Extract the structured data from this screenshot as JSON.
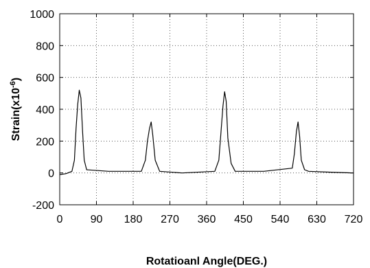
{
  "chart_data": {
    "type": "line",
    "title": "",
    "xlabel": "Rotatioanl Angle(DEG.)",
    "ylabel": {
      "base": "Strain(x10",
      "exponent": "-6",
      "close": ")"
    },
    "xlim": [
      0,
      720
    ],
    "ylim": [
      -200,
      1000
    ],
    "xticks": [
      "0",
      "90",
      "180",
      "270",
      "360",
      "450",
      "540",
      "630",
      "720"
    ],
    "yticks": [
      "-200",
      "0",
      "200",
      "400",
      "600",
      "800",
      "1000"
    ],
    "grid": true,
    "legend": "none",
    "series": [
      {
        "color": "#000000",
        "x": [
          0,
          15,
          30,
          36,
          40,
          44,
          48,
          52,
          56,
          60,
          66,
          120,
          200,
          210,
          215,
          220,
          224,
          228,
          234,
          245,
          300,
          380,
          390,
          395,
          400,
          404,
          408,
          412,
          420,
          430,
          500,
          570,
          575,
          580,
          584,
          588,
          592,
          600,
          610,
          660,
          720
        ],
        "y": [
          -10,
          -5,
          10,
          80,
          280,
          430,
          520,
          470,
          260,
          80,
          20,
          10,
          10,
          80,
          200,
          280,
          320,
          240,
          80,
          10,
          0,
          10,
          80,
          250,
          420,
          510,
          450,
          220,
          60,
          10,
          10,
          30,
          120,
          260,
          320,
          230,
          80,
          20,
          10,
          5,
          0
        ]
      }
    ]
  }
}
